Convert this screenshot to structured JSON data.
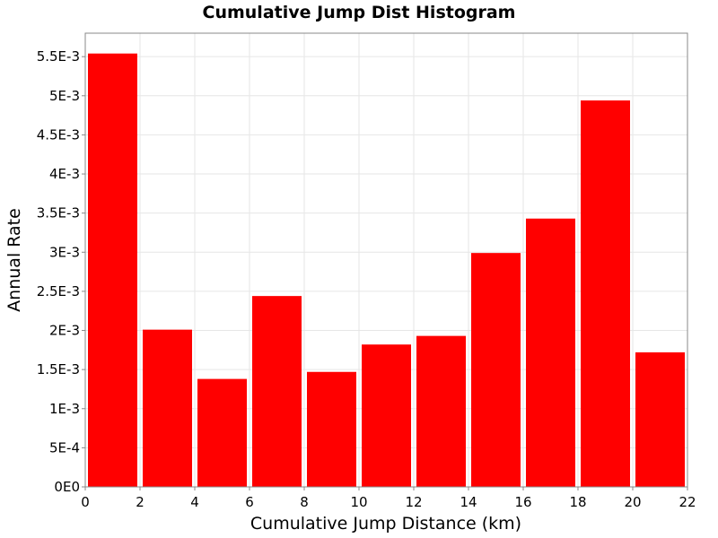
{
  "chart_data": {
    "type": "bar",
    "title": "Cumulative Jump Dist Histogram",
    "xlabel": "Cumulative Jump Distance (km)",
    "ylabel": "Annual Rate",
    "xlim": [
      0,
      22
    ],
    "ylim": [
      0,
      0.0058
    ],
    "grid": true,
    "bar_color": "#ff0000",
    "x_ticks": [
      {
        "value": 0,
        "label": "0"
      },
      {
        "value": 2,
        "label": "2"
      },
      {
        "value": 4,
        "label": "4"
      },
      {
        "value": 6,
        "label": "6"
      },
      {
        "value": 8,
        "label": "8"
      },
      {
        "value": 10,
        "label": "10"
      },
      {
        "value": 12,
        "label": "12"
      },
      {
        "value": 14,
        "label": "14"
      },
      {
        "value": 16,
        "label": "16"
      },
      {
        "value": 18,
        "label": "18"
      },
      {
        "value": 20,
        "label": "20"
      },
      {
        "value": 22,
        "label": "22"
      }
    ],
    "y_ticks": [
      {
        "value": 0,
        "label": "0E0"
      },
      {
        "value": 0.0005,
        "label": "5E-4"
      },
      {
        "value": 0.001,
        "label": "1E-3"
      },
      {
        "value": 0.0015,
        "label": "1.5E-3"
      },
      {
        "value": 0.002,
        "label": "2E-3"
      },
      {
        "value": 0.0025,
        "label": "2.5E-3"
      },
      {
        "value": 0.003,
        "label": "3E-3"
      },
      {
        "value": 0.0035,
        "label": "3.5E-3"
      },
      {
        "value": 0.004,
        "label": "4E-3"
      },
      {
        "value": 0.0045,
        "label": "4.5E-3"
      },
      {
        "value": 0.005,
        "label": "5E-3"
      },
      {
        "value": 0.0055,
        "label": "5.5E-3"
      }
    ],
    "bins": [
      {
        "x0": 0,
        "x1": 2,
        "value": 0.00554
      },
      {
        "x0": 2,
        "x1": 4,
        "value": 0.00201
      },
      {
        "x0": 4,
        "x1": 6,
        "value": 0.00138
      },
      {
        "x0": 6,
        "x1": 8,
        "value": 0.00244
      },
      {
        "x0": 8,
        "x1": 10,
        "value": 0.00147
      },
      {
        "x0": 10,
        "x1": 12,
        "value": 0.00182
      },
      {
        "x0": 12,
        "x1": 14,
        "value": 0.00193
      },
      {
        "x0": 14,
        "x1": 16,
        "value": 0.00299
      },
      {
        "x0": 16,
        "x1": 18,
        "value": 0.00343
      },
      {
        "x0": 18,
        "x1": 20,
        "value": 0.00494
      },
      {
        "x0": 20,
        "x1": 22,
        "value": 0.00172
      }
    ]
  }
}
